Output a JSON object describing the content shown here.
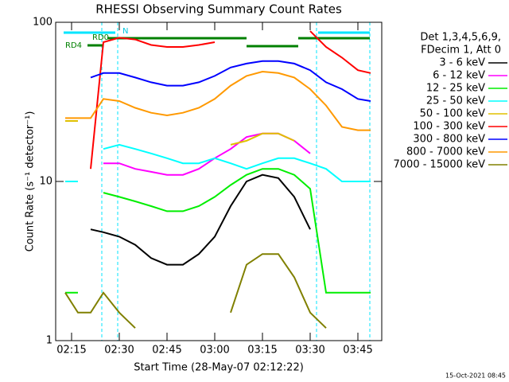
{
  "chart_data": {
    "type": "line",
    "title": "RHESSI Observing Summary Count Rates",
    "x_label": "Start Time (28-May-07 02:12:22)",
    "y_label": "Count Rate (s⁻¹ detector⁻¹)",
    "log_y": true,
    "xlim": [
      130,
      232.5
    ],
    "ylim": [
      1,
      100
    ],
    "xticks": [
      {
        "value": 135,
        "label": "02:15"
      },
      {
        "value": 150,
        "label": "02:30"
      },
      {
        "value": 165,
        "label": "02:45"
      },
      {
        "value": 180,
        "label": "03:00"
      },
      {
        "value": 195,
        "label": "03:15"
      },
      {
        "value": 210,
        "label": "03:30"
      },
      {
        "value": 225,
        "label": "03:45"
      }
    ],
    "yticks": [
      1,
      10,
      100
    ],
    "legend_header": [
      "Det 1,3,4,5,6,9,",
      "FDecim 1, Att 0"
    ],
    "annotations": [
      "RD0",
      "RD4",
      "N"
    ],
    "timestamp": "15-Oct-2021 08:45",
    "x": [
      133,
      137,
      141,
      145,
      150,
      155,
      160,
      165,
      170,
      175,
      180,
      185,
      190,
      195,
      200,
      205,
      210,
      215,
      220,
      225,
      229
    ],
    "series": [
      {
        "name": "3 - 6 keV",
        "color": "#000000",
        "values": [
          null,
          null,
          5,
          4.8,
          4.5,
          4,
          3.3,
          3,
          3,
          3.5,
          4.5,
          7,
          10,
          11,
          10.5,
          8,
          5,
          null,
          null,
          null,
          null
        ]
      },
      {
        "name": "6 - 12 keV",
        "color": "#ff00ff",
        "values": [
          null,
          null,
          null,
          13,
          13,
          12,
          11.5,
          11,
          11,
          12,
          14,
          16,
          19,
          20,
          20,
          18,
          15,
          null,
          null,
          null,
          null
        ]
      },
      {
        "name": "12 - 25 keV",
        "color": "#00ee00",
        "values": [
          2,
          2,
          null,
          8.5,
          8,
          7.5,
          7,
          6.5,
          6.5,
          7,
          8,
          9.5,
          11,
          12,
          12,
          11,
          9,
          2,
          2,
          2,
          2
        ]
      },
      {
        "name": "25 - 50 keV",
        "color": "#00ffff",
        "values": [
          10,
          10,
          null,
          16,
          17,
          16,
          15,
          14,
          13,
          13,
          14,
          13,
          12,
          13,
          14,
          14,
          13,
          12,
          10,
          10,
          10
        ]
      },
      {
        "name": "50 - 100 keV",
        "color": "#e0c000",
        "values": [
          24,
          24,
          null,
          null,
          null,
          null,
          null,
          null,
          null,
          null,
          null,
          17,
          18,
          20,
          20,
          18,
          null,
          null,
          null,
          null,
          null
        ]
      },
      {
        "name": "100 - 300 keV",
        "color": "#ff0000",
        "values": [
          null,
          null,
          12,
          75,
          80,
          78,
          72,
          70,
          70,
          72,
          75,
          null,
          null,
          null,
          null,
          null,
          88,
          70,
          60,
          50,
          48
        ]
      },
      {
        "name": "300 - 800 keV",
        "color": "#0000ff",
        "values": [
          null,
          null,
          45,
          48,
          48,
          45,
          42,
          40,
          40,
          42,
          46,
          52,
          55,
          57,
          57,
          55,
          50,
          42,
          38,
          33,
          32
        ]
      },
      {
        "name": "800 - 7000 keV",
        "color": "#ff9900",
        "values": [
          25,
          25,
          25,
          33,
          32,
          29,
          27,
          26,
          27,
          29,
          33,
          40,
          46,
          49,
          48,
          45,
          38,
          30,
          22,
          21,
          21
        ]
      },
      {
        "name": "7000 - 15000 keV",
        "color": "#808000",
        "values": [
          2,
          1.5,
          1.5,
          2,
          1.5,
          1.2,
          null,
          null,
          null,
          null,
          null,
          1.5,
          3,
          3.5,
          3.5,
          2.5,
          1.5,
          1.2,
          null,
          null,
          null
        ]
      }
    ]
  }
}
